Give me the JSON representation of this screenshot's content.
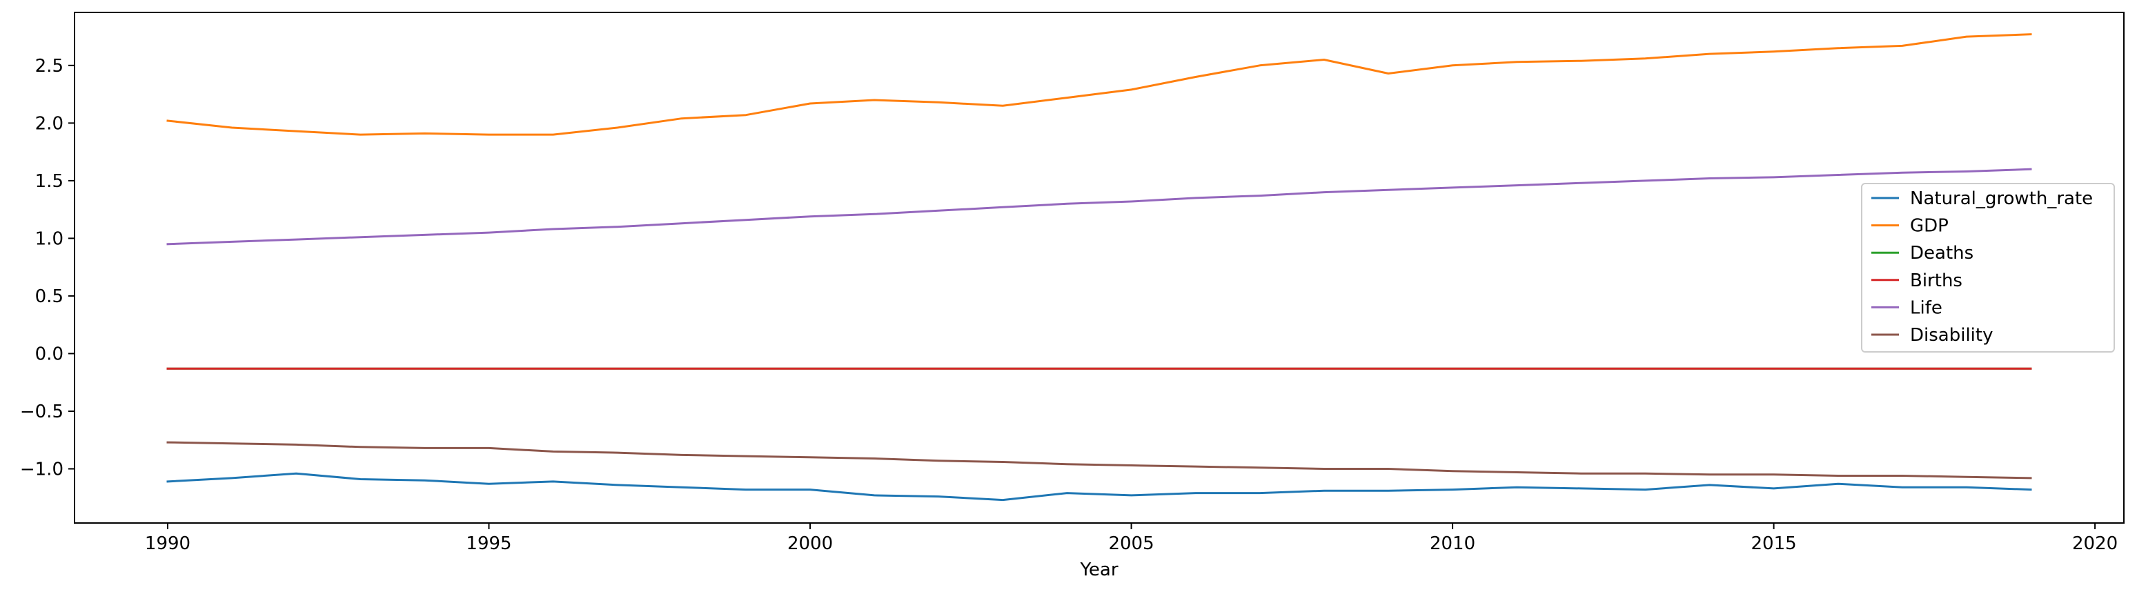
{
  "chart_data": {
    "type": "line",
    "title": "",
    "xlabel": "Year",
    "ylabel": "",
    "xlim": [
      1988.55,
      2020.45
    ],
    "ylim": [
      -1.47,
      2.96
    ],
    "xticks": [
      1990,
      1995,
      2000,
      2005,
      2010,
      2015,
      2020
    ],
    "yticks": [
      -1.0,
      -0.5,
      0.0,
      0.5,
      1.0,
      1.5,
      2.0,
      2.5
    ],
    "ytick_labels": [
      "−1.0",
      "−0.5",
      "0.0",
      "0.5",
      "1.0",
      "1.5",
      "2.0",
      "2.5"
    ],
    "grid": false,
    "legend_position": "center-right",
    "x": [
      1990,
      1991,
      1992,
      1993,
      1994,
      1995,
      1996,
      1997,
      1998,
      1999,
      2000,
      2001,
      2002,
      2003,
      2004,
      2005,
      2006,
      2007,
      2008,
      2009,
      2010,
      2011,
      2012,
      2013,
      2014,
      2015,
      2016,
      2017,
      2018,
      2019
    ],
    "series": [
      {
        "name": "Natural_growth_rate",
        "color": "#1f77b4",
        "values": [
          -1.11,
          -1.08,
          -1.04,
          -1.09,
          -1.1,
          -1.13,
          -1.11,
          -1.14,
          -1.16,
          -1.18,
          -1.18,
          -1.23,
          -1.24,
          -1.27,
          -1.21,
          -1.23,
          -1.21,
          -1.21,
          -1.19,
          -1.19,
          -1.18,
          -1.16,
          -1.17,
          -1.18,
          -1.14,
          -1.17,
          -1.13,
          -1.16,
          -1.16,
          -1.18
        ]
      },
      {
        "name": "GDP",
        "color": "#ff7f0e",
        "values": [
          2.02,
          1.96,
          1.93,
          1.9,
          1.91,
          1.9,
          1.9,
          1.96,
          2.04,
          2.07,
          2.17,
          2.2,
          2.18,
          2.15,
          2.22,
          2.29,
          2.4,
          2.5,
          2.55,
          2.43,
          2.5,
          2.53,
          2.54,
          2.56,
          2.6,
          2.62,
          2.65,
          2.67,
          2.75,
          2.77
        ]
      },
      {
        "name": "Deaths",
        "color": "#2ca02c",
        "values": [
          -0.13,
          -0.13,
          -0.13,
          -0.13,
          -0.13,
          -0.13,
          -0.13,
          -0.13,
          -0.13,
          -0.13,
          -0.13,
          -0.13,
          -0.13,
          -0.13,
          -0.13,
          -0.13,
          -0.13,
          -0.13,
          -0.13,
          -0.13,
          -0.13,
          -0.13,
          -0.13,
          -0.13,
          -0.13,
          -0.13,
          -0.13,
          -0.13,
          -0.13,
          -0.13
        ]
      },
      {
        "name": "Births",
        "color": "#d62728",
        "values": [
          -0.13,
          -0.13,
          -0.13,
          -0.13,
          -0.13,
          -0.13,
          -0.13,
          -0.13,
          -0.13,
          -0.13,
          -0.13,
          -0.13,
          -0.13,
          -0.13,
          -0.13,
          -0.13,
          -0.13,
          -0.13,
          -0.13,
          -0.13,
          -0.13,
          -0.13,
          -0.13,
          -0.13,
          -0.13,
          -0.13,
          -0.13,
          -0.13,
          -0.13,
          -0.13
        ]
      },
      {
        "name": "Life",
        "color": "#9467bd",
        "values": [
          0.95,
          0.97,
          0.99,
          1.01,
          1.03,
          1.05,
          1.08,
          1.1,
          1.13,
          1.16,
          1.19,
          1.21,
          1.24,
          1.27,
          1.3,
          1.32,
          1.35,
          1.37,
          1.4,
          1.42,
          1.44,
          1.46,
          1.48,
          1.5,
          1.52,
          1.53,
          1.55,
          1.57,
          1.58,
          1.6
        ]
      },
      {
        "name": "Disability",
        "color": "#8c564b",
        "values": [
          -0.77,
          -0.78,
          -0.79,
          -0.81,
          -0.82,
          -0.82,
          -0.85,
          -0.86,
          -0.88,
          -0.89,
          -0.9,
          -0.91,
          -0.93,
          -0.94,
          -0.96,
          -0.97,
          -0.98,
          -0.99,
          -1.0,
          -1.0,
          -1.02,
          -1.03,
          -1.04,
          -1.04,
          -1.05,
          -1.05,
          -1.06,
          -1.06,
          -1.07,
          -1.08
        ]
      }
    ]
  }
}
